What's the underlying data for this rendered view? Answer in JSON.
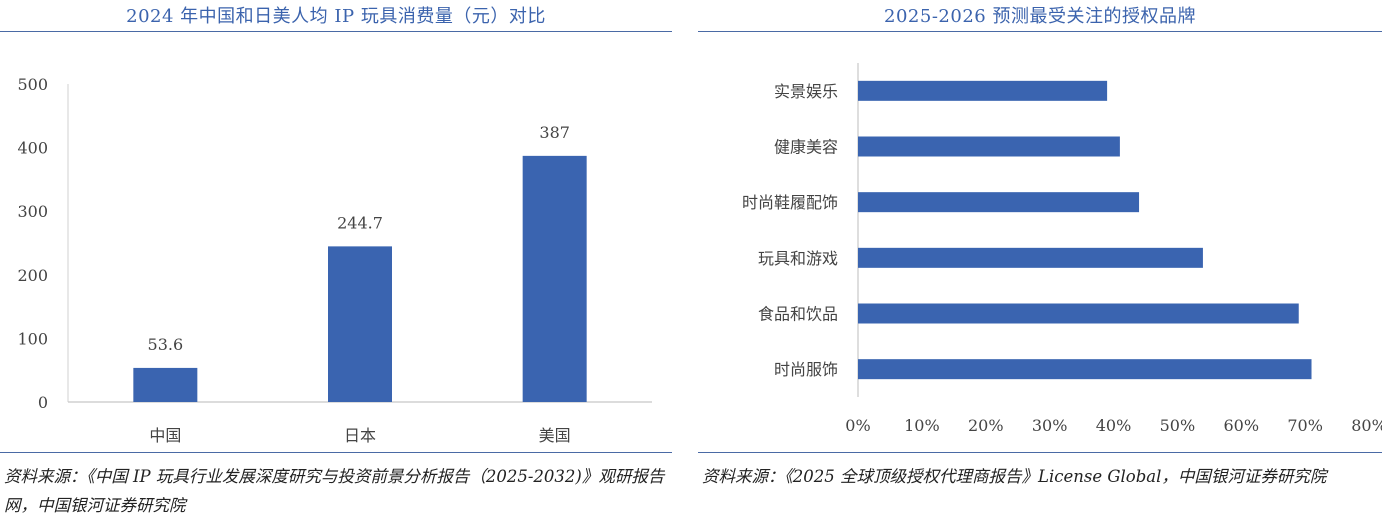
{
  "chart_data": [
    {
      "type": "bar",
      "title": "2024 年中国和日美人均 IP 玩具消费量（元）对比",
      "categories": [
        "中国",
        "日本",
        "美国"
      ],
      "values": [
        53.6,
        244.7,
        387
      ],
      "data_labels": [
        "53.6",
        "244.7",
        "387"
      ],
      "y_ticks": [
        "0",
        "100",
        "200",
        "300",
        "400",
        "500"
      ],
      "ylim": [
        0,
        500
      ],
      "xlabel": "",
      "ylabel": "",
      "bar_color": "#3a64b0",
      "source": "资料来源：《中国 IP 玩具行业发展深度研究与投资前景分析报告（2025-2032)》观研报告网，中国银河证券研究院"
    },
    {
      "type": "bar",
      "orientation": "horizontal",
      "title": "2025-2026 预测最受关注的授权品牌",
      "categories": [
        "实景娱乐",
        "健康美容",
        "时尚鞋履配饰",
        "玩具和游戏",
        "食品和饮品",
        "时尚服饰"
      ],
      "values": [
        39,
        41,
        44,
        54,
        69,
        71
      ],
      "x_ticks": [
        "0%",
        "10%",
        "20%",
        "30%",
        "40%",
        "50%",
        "60%",
        "70%",
        "80%"
      ],
      "xlim": [
        0,
        80
      ],
      "xlabel": "",
      "ylabel": "",
      "bar_color": "#3a64b0",
      "source": "资料来源：《2025 全球顶级授权代理商报告》License Global，中国银河证券研究院"
    }
  ]
}
